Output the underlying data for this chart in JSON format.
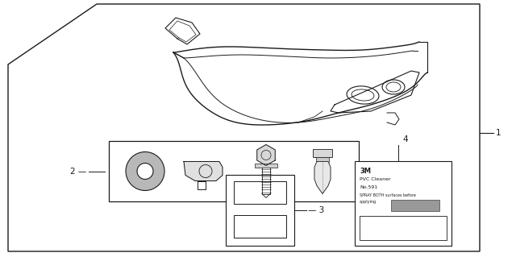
{
  "bg_color": "#ffffff",
  "border_color": "#1a1a1a",
  "line_color": "#1a1a1a",
  "figure_width": 6.4,
  "figure_height": 3.19,
  "label_1": "1",
  "label_2": "2",
  "label_3": "3",
  "label_4": "4",
  "label_fontsize": 7.5,
  "note_3m": "3M",
  "note_pvc": "PVC Cleaner",
  "note_no": "No.591",
  "note_spray": "SPRAY BOTH surfaces before",
  "note_apply": "applying"
}
